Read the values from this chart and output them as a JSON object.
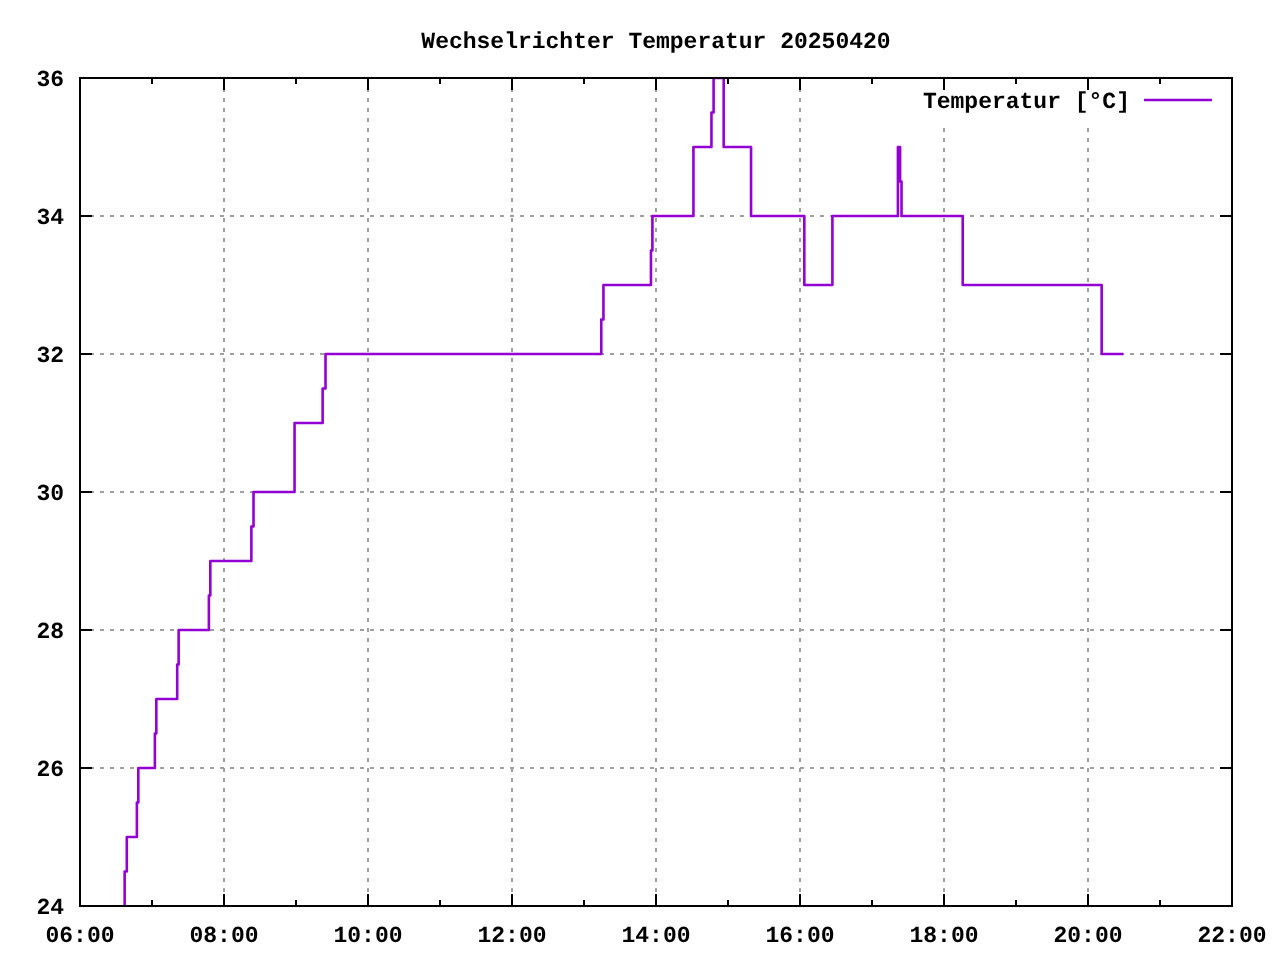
{
  "chart_data": {
    "type": "step",
    "title": "Wechselrichter Temperatur 20250420",
    "x": [
      6.62,
      6.62,
      6.65,
      6.79,
      6.81,
      7.04,
      7.06,
      7.35,
      7.37,
      7.79,
      7.81,
      8.38,
      8.41,
      8.98,
      9.37,
      9.41,
      13.24,
      13.27,
      13.93,
      13.95,
      14.52,
      14.77,
      14.8,
      14.94,
      15.32,
      16.06,
      16.45,
      17.36,
      17.39,
      17.41,
      18.26,
      20.19,
      20.49
    ],
    "series": [
      {
        "name": "Temperatur [°C]",
        "color": "#9400d3",
        "values": [
          24,
          24.5,
          25,
          25.5,
          26,
          26.5,
          27,
          27.5,
          28,
          28.5,
          29,
          29.5,
          30,
          31,
          31.5,
          32,
          32.5,
          33,
          33.5,
          34,
          35,
          35.5,
          36,
          35,
          34,
          33,
          34,
          35,
          34.5,
          34,
          33,
          32,
          32
        ]
      }
    ],
    "xlim": [
      6,
      22
    ],
    "ylim": [
      24,
      36
    ],
    "xticks": [
      {
        "value": 6,
        "label": "06:00"
      },
      {
        "value": 7,
        "label": null
      },
      {
        "value": 8,
        "label": "08:00"
      },
      {
        "value": 9,
        "label": null
      },
      {
        "value": 10,
        "label": "10:00"
      },
      {
        "value": 11,
        "label": null
      },
      {
        "value": 12,
        "label": "12:00"
      },
      {
        "value": 13,
        "label": null
      },
      {
        "value": 14,
        "label": "14:00"
      },
      {
        "value": 15,
        "label": null
      },
      {
        "value": 16,
        "label": "16:00"
      },
      {
        "value": 17,
        "label": null
      },
      {
        "value": 18,
        "label": "18:00"
      },
      {
        "value": 19,
        "label": null
      },
      {
        "value": 20,
        "label": "20:00"
      },
      {
        "value": 21,
        "label": null
      },
      {
        "value": 22,
        "label": "22:00"
      }
    ],
    "yticks": [
      24,
      26,
      28,
      30,
      32,
      34,
      36
    ],
    "grid": true,
    "legend": "top right"
  }
}
